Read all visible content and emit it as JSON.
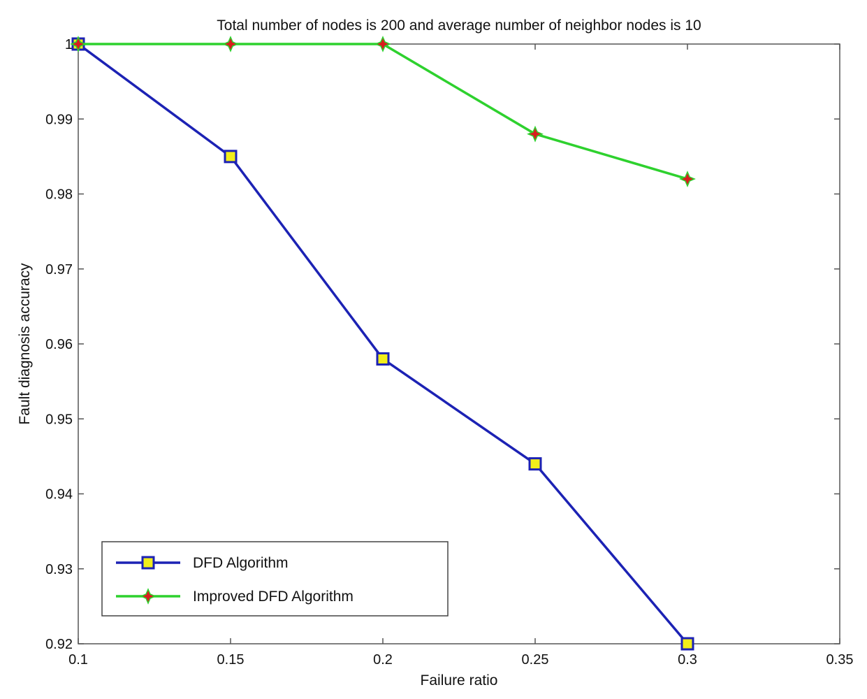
{
  "chart_data": {
    "type": "line",
    "title": "Total number of nodes is 200 and average number of neighbor nodes is 10",
    "xlabel": "Failure ratio",
    "ylabel": "Fault diagnosis accuracy",
    "xlim": [
      0.1,
      0.35
    ],
    "ylim": [
      0.92,
      1.0
    ],
    "x_ticks": [
      "0.1",
      "0.15",
      "0.2",
      "0.25",
      "0.3",
      "0.35"
    ],
    "y_ticks": [
      "0.92",
      "0.93",
      "0.94",
      "0.95",
      "0.96",
      "0.97",
      "0.98",
      "0.99",
      "1"
    ],
    "grid": false,
    "legend_position": "bottom-left",
    "x": [
      0.1,
      0.15,
      0.2,
      0.25,
      0.3
    ],
    "series": [
      {
        "name": "DFD Algorithm",
        "values": [
          1.0,
          0.985,
          0.958,
          0.944,
          0.92
        ],
        "color": "#1c22b4",
        "marker": "square",
        "marker_fill": "#f2ee1a"
      },
      {
        "name": "Improved DFD Algorithm",
        "values": [
          1.0,
          1.0,
          1.0,
          0.988,
          0.982
        ],
        "color": "#2ed12e",
        "marker": "star",
        "marker_fill": "#d81e1e"
      }
    ]
  }
}
